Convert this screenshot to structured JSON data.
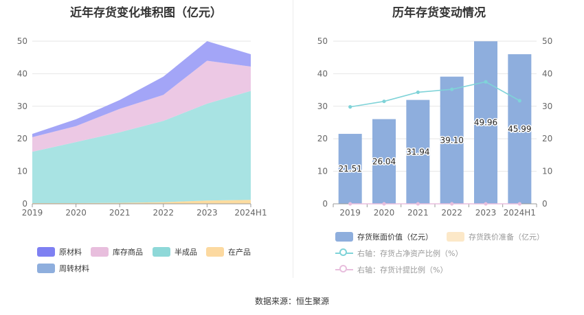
{
  "source_text": "数据来源：恒生聚源",
  "chart_data": [
    {
      "type": "area",
      "stacked": true,
      "title": "近年存货变化堆积图（亿元）",
      "categories": [
        "2019",
        "2020",
        "2021",
        "2022",
        "2023",
        "2024H1"
      ],
      "ylim": [
        0,
        50
      ],
      "yticks": [
        0,
        10,
        20,
        30,
        40,
        50
      ],
      "grid": true,
      "legend_position": "bottom",
      "series": [
        {
          "name": "在产品",
          "color": "#fcdca0",
          "values": [
            0.2,
            0.2,
            0.3,
            0.5,
            1.0,
            1.2
          ]
        },
        {
          "name": "半成品",
          "color": "#a8e3e3",
          "values": [
            15.8,
            18.8,
            21.7,
            25.0,
            29.8,
            33.5
          ]
        },
        {
          "name": "库存商品",
          "color": "#ecc8e4",
          "values": [
            4.5,
            4.9,
            7.2,
            8.0,
            13.2,
            7.5
          ]
        },
        {
          "name": "原材料",
          "color": "#a3a5f7",
          "values": [
            1.0,
            2.1,
            2.7,
            5.6,
            6.0,
            3.8
          ]
        },
        {
          "name": "周转材料",
          "color": "#8eaedd",
          "values": [
            0.0,
            0.0,
            0.0,
            0.0,
            0.0,
            0.0
          ]
        }
      ],
      "legend_order": [
        "原材料",
        "库存商品",
        "半成品",
        "在产品",
        "周转材料"
      ],
      "legend_colors": {
        "原材料": "#7e80f2",
        "库存商品": "#e8bedd",
        "半成品": "#8ed8d8",
        "在产品": "#fcd9a0",
        "周转材料": "#8eaedd"
      }
    },
    {
      "type": "bar",
      "title": "历年存货变动情况",
      "categories": [
        "2019",
        "2020",
        "2021",
        "2022",
        "2023",
        "2024H1"
      ],
      "ylim": [
        0,
        50
      ],
      "yticks": [
        0,
        10,
        20,
        30,
        40,
        50
      ],
      "y2lim": [
        0,
        50
      ],
      "y2ticks": [
        0,
        10,
        20,
        30,
        40,
        50
      ],
      "grid": true,
      "legend_position": "bottom",
      "series": [
        {
          "name": "存货账面价值（亿元）",
          "type": "bar",
          "color": "#8eaedd",
          "values": [
            21.51,
            26.04,
            31.94,
            39.1,
            49.96,
            45.99
          ],
          "labels": [
            "21.51",
            "26.04",
            "31.94",
            "39.10",
            "49.96",
            "45.99"
          ]
        },
        {
          "name": "存货跌价准备（亿元）",
          "type": "bar",
          "color": "#fce8c8",
          "values": [
            0,
            0,
            0,
            0,
            0,
            0
          ]
        },
        {
          "name": "右轴：存货占净资产比例（%）",
          "type": "line",
          "axis": "right",
          "color": "#7fd3d8",
          "values": [
            29.8,
            31.5,
            34.3,
            35.2,
            37.5,
            31.7
          ]
        },
        {
          "name": "右轴：存货计提比例（%）",
          "type": "line",
          "axis": "right",
          "color": "#e8bedd",
          "values": [
            0,
            0,
            0,
            0,
            0,
            0
          ]
        }
      ]
    }
  ]
}
